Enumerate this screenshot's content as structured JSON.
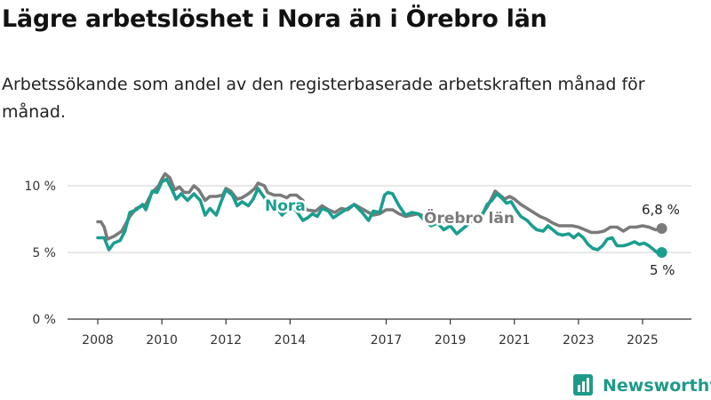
{
  "title": "Lägre arbetslöshet i Nora än i Örebro län",
  "subtitle": "Arbetssökande som andel av den registerbaserade arbetskraften månad för månad.",
  "brand": "Newsworthy",
  "colors": {
    "nora": "#1a9e8f",
    "orebro": "#7a7a7a",
    "grid": "#d9d9d9",
    "axis": "#333333"
  },
  "chart_data": {
    "type": "line",
    "x_range": [
      2007.7,
      2026.4
    ],
    "ylim": [
      0,
      11
    ],
    "y_ticks": [
      {
        "value": 0,
        "label": "0 %"
      },
      {
        "value": 5,
        "label": "5 %"
      },
      {
        "value": 10,
        "label": "10 %"
      }
    ],
    "x_ticks": [
      {
        "value": 2008,
        "label": "2008"
      },
      {
        "value": 2010,
        "label": "2010"
      },
      {
        "value": 2012,
        "label": "2012"
      },
      {
        "value": 2014,
        "label": "2014"
      },
      {
        "value": 2017,
        "label": "2017"
      },
      {
        "value": 2019,
        "label": "2019"
      },
      {
        "value": 2021,
        "label": "2021"
      },
      {
        "value": 2023,
        "label": "2023"
      },
      {
        "value": 2025,
        "label": "2025"
      }
    ],
    "grid": true,
    "series": [
      {
        "name": "Örebro län",
        "color": "#7a7a7a",
        "end_label": "6,8 %",
        "points": [
          [
            2008.0,
            7.3
          ],
          [
            2008.1,
            7.3
          ],
          [
            2008.2,
            6.9
          ],
          [
            2008.3,
            6.0
          ],
          [
            2008.5,
            6.2
          ],
          [
            2008.75,
            6.6
          ],
          [
            2009.0,
            7.7
          ],
          [
            2009.2,
            8.3
          ],
          [
            2009.5,
            8.6
          ],
          [
            2009.7,
            9.5
          ],
          [
            2009.9,
            10.0
          ],
          [
            2010.0,
            10.5
          ],
          [
            2010.1,
            10.9
          ],
          [
            2010.25,
            10.6
          ],
          [
            2010.4,
            9.7
          ],
          [
            2010.55,
            9.9
          ],
          [
            2010.7,
            9.5
          ],
          [
            2010.85,
            9.5
          ],
          [
            2011.0,
            10.0
          ],
          [
            2011.15,
            9.7
          ],
          [
            2011.35,
            8.9
          ],
          [
            2011.5,
            9.2
          ],
          [
            2011.7,
            9.2
          ],
          [
            2011.9,
            9.3
          ],
          [
            2012.0,
            9.8
          ],
          [
            2012.15,
            9.6
          ],
          [
            2012.35,
            9.0
          ],
          [
            2012.5,
            9.1
          ],
          [
            2012.7,
            9.4
          ],
          [
            2012.9,
            9.8
          ],
          [
            2013.0,
            10.2
          ],
          [
            2013.2,
            10.0
          ],
          [
            2013.3,
            9.5
          ],
          [
            2013.5,
            9.3
          ],
          [
            2013.7,
            9.3
          ],
          [
            2013.9,
            9.1
          ],
          [
            2014.0,
            9.3
          ],
          [
            2014.2,
            9.3
          ],
          [
            2014.4,
            8.9
          ],
          [
            2014.5,
            8.2
          ],
          [
            2014.8,
            8.1
          ],
          [
            2015.0,
            8.5
          ],
          [
            2015.2,
            8.2
          ],
          [
            2015.4,
            8.0
          ],
          [
            2015.6,
            8.3
          ],
          [
            2015.8,
            8.2
          ],
          [
            2016.0,
            8.6
          ],
          [
            2016.3,
            8.2
          ],
          [
            2016.45,
            8.0
          ],
          [
            2016.6,
            7.8
          ],
          [
            2016.8,
            7.9
          ],
          [
            2017.0,
            8.2
          ],
          [
            2017.2,
            8.2
          ],
          [
            2017.4,
            7.9
          ],
          [
            2017.6,
            7.7
          ],
          [
            2017.8,
            7.8
          ],
          [
            2018.0,
            7.9
          ],
          [
            2018.3,
            7.6
          ],
          [
            2018.5,
            7.4
          ],
          [
            2018.8,
            7.3
          ],
          [
            2019.0,
            7.4
          ],
          [
            2019.3,
            7.3
          ],
          [
            2019.6,
            7.4
          ],
          [
            2019.8,
            7.7
          ],
          [
            2020.0,
            7.9
          ],
          [
            2020.15,
            8.4
          ],
          [
            2020.3,
            9.1
          ],
          [
            2020.4,
            9.6
          ],
          [
            2020.55,
            9.3
          ],
          [
            2020.7,
            9.0
          ],
          [
            2020.85,
            9.2
          ],
          [
            2021.0,
            9.0
          ],
          [
            2021.2,
            8.6
          ],
          [
            2021.4,
            8.3
          ],
          [
            2021.6,
            8.0
          ],
          [
            2021.8,
            7.7
          ],
          [
            2022.0,
            7.5
          ],
          [
            2022.2,
            7.2
          ],
          [
            2022.4,
            7.0
          ],
          [
            2022.6,
            7.0
          ],
          [
            2022.8,
            7.0
          ],
          [
            2023.0,
            6.9
          ],
          [
            2023.2,
            6.7
          ],
          [
            2023.4,
            6.5
          ],
          [
            2023.6,
            6.5
          ],
          [
            2023.8,
            6.6
          ],
          [
            2024.0,
            6.9
          ],
          [
            2024.2,
            6.9
          ],
          [
            2024.4,
            6.6
          ],
          [
            2024.6,
            6.9
          ],
          [
            2024.8,
            6.9
          ],
          [
            2025.0,
            7.0
          ],
          [
            2025.2,
            6.9
          ],
          [
            2025.4,
            6.7
          ],
          [
            2025.55,
            6.7
          ],
          [
            2025.6,
            6.8
          ]
        ]
      },
      {
        "name": "Nora",
        "color": "#1a9e8f",
        "end_label": "5 %",
        "points": [
          [
            2008.0,
            6.1
          ],
          [
            2008.2,
            6.1
          ],
          [
            2008.35,
            5.2
          ],
          [
            2008.5,
            5.7
          ],
          [
            2008.7,
            5.9
          ],
          [
            2008.85,
            6.6
          ],
          [
            2009.0,
            8.0
          ],
          [
            2009.2,
            8.2
          ],
          [
            2009.4,
            8.6
          ],
          [
            2009.5,
            8.2
          ],
          [
            2009.7,
            9.6
          ],
          [
            2009.85,
            9.5
          ],
          [
            2010.0,
            10.3
          ],
          [
            2010.15,
            10.5
          ],
          [
            2010.3,
            9.8
          ],
          [
            2010.45,
            9.0
          ],
          [
            2010.6,
            9.4
          ],
          [
            2010.8,
            8.9
          ],
          [
            2011.0,
            9.4
          ],
          [
            2011.2,
            8.9
          ],
          [
            2011.35,
            7.8
          ],
          [
            2011.5,
            8.3
          ],
          [
            2011.7,
            7.8
          ],
          [
            2011.85,
            8.8
          ],
          [
            2012.0,
            9.7
          ],
          [
            2012.2,
            9.3
          ],
          [
            2012.35,
            8.5
          ],
          [
            2012.5,
            8.8
          ],
          [
            2012.7,
            8.5
          ],
          [
            2012.85,
            9.0
          ],
          [
            2013.0,
            9.8
          ],
          [
            2013.2,
            9.1
          ],
          [
            2013.4,
            8.6
          ],
          [
            2013.6,
            8.3
          ],
          [
            2013.75,
            7.8
          ],
          [
            2014.0,
            8.4
          ],
          [
            2014.2,
            8.1
          ],
          [
            2014.4,
            7.4
          ],
          [
            2014.55,
            7.6
          ],
          [
            2014.7,
            7.9
          ],
          [
            2014.85,
            7.7
          ],
          [
            2015.0,
            8.3
          ],
          [
            2015.2,
            8.1
          ],
          [
            2015.35,
            7.6
          ],
          [
            2015.6,
            8.0
          ],
          [
            2015.8,
            8.3
          ],
          [
            2016.0,
            8.6
          ],
          [
            2016.25,
            8.0
          ],
          [
            2016.45,
            7.4
          ],
          [
            2016.6,
            8.1
          ],
          [
            2016.8,
            8.0
          ],
          [
            2016.95,
            9.3
          ],
          [
            2017.05,
            9.5
          ],
          [
            2017.2,
            9.4
          ],
          [
            2017.4,
            8.5
          ],
          [
            2017.6,
            7.8
          ],
          [
            2017.8,
            8.0
          ],
          [
            2018.0,
            7.9
          ],
          [
            2018.2,
            7.4
          ],
          [
            2018.4,
            7.0
          ],
          [
            2018.6,
            7.2
          ],
          [
            2018.8,
            6.7
          ],
          [
            2019.0,
            7.0
          ],
          [
            2019.2,
            6.4
          ],
          [
            2019.4,
            6.8
          ],
          [
            2019.6,
            7.2
          ],
          [
            2019.8,
            7.6
          ],
          [
            2020.0,
            7.8
          ],
          [
            2020.15,
            8.6
          ],
          [
            2020.3,
            8.9
          ],
          [
            2020.45,
            9.4
          ],
          [
            2020.6,
            9.1
          ],
          [
            2020.75,
            8.7
          ],
          [
            2020.9,
            8.8
          ],
          [
            2021.05,
            8.2
          ],
          [
            2021.2,
            7.7
          ],
          [
            2021.4,
            7.4
          ],
          [
            2021.55,
            7.0
          ],
          [
            2021.7,
            6.7
          ],
          [
            2021.9,
            6.6
          ],
          [
            2022.05,
            7.0
          ],
          [
            2022.2,
            6.7
          ],
          [
            2022.35,
            6.4
          ],
          [
            2022.5,
            6.3
          ],
          [
            2022.7,
            6.4
          ],
          [
            2022.85,
            6.1
          ],
          [
            2023.0,
            6.4
          ],
          [
            2023.15,
            6.1
          ],
          [
            2023.3,
            5.6
          ],
          [
            2023.45,
            5.3
          ],
          [
            2023.6,
            5.2
          ],
          [
            2023.75,
            5.5
          ],
          [
            2023.9,
            6.0
          ],
          [
            2024.05,
            6.1
          ],
          [
            2024.2,
            5.5
          ],
          [
            2024.4,
            5.5
          ],
          [
            2024.55,
            5.6
          ],
          [
            2024.75,
            5.8
          ],
          [
            2024.9,
            5.6
          ],
          [
            2025.05,
            5.7
          ],
          [
            2025.2,
            5.5
          ],
          [
            2025.35,
            5.2
          ],
          [
            2025.5,
            4.9
          ],
          [
            2025.6,
            5.0
          ]
        ]
      }
    ]
  }
}
